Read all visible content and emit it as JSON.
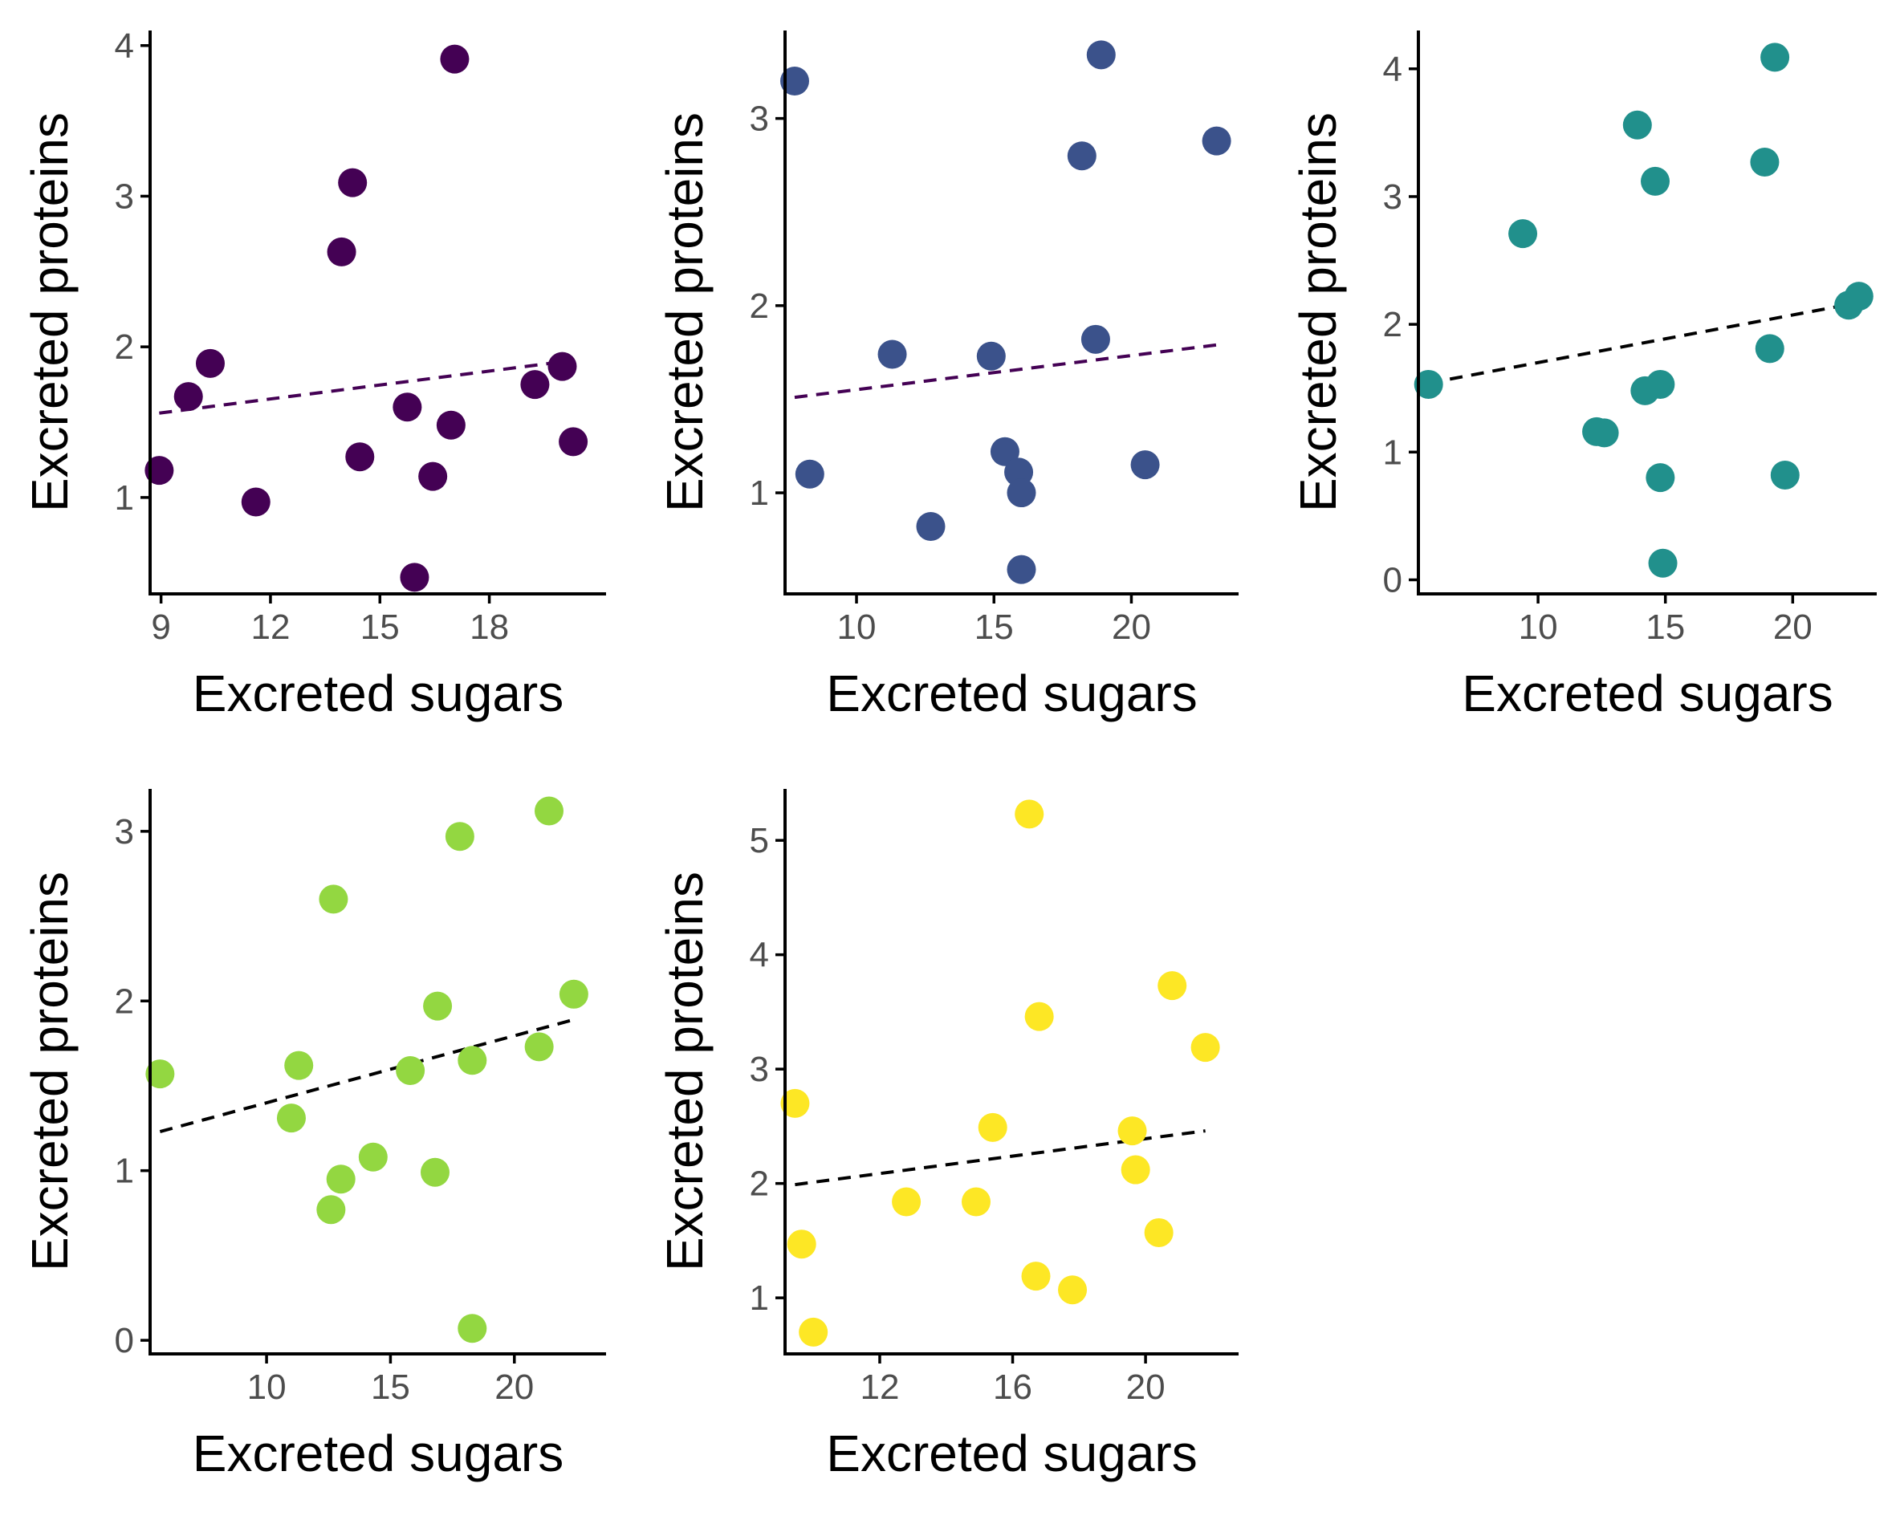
{
  "chart_data": [
    {
      "type": "scatter",
      "xlabel": "Excreted sugars",
      "ylabel": "Excreted proteins",
      "color": "#440154",
      "line_color": "#440154",
      "xlim": [
        8.7,
        21.2
      ],
      "ylim": [
        0.36,
        4.1
      ],
      "xticks": [
        9,
        12,
        15,
        18
      ],
      "yticks": [
        1,
        2,
        3,
        4
      ],
      "points": [
        {
          "x": 8.95,
          "y": 1.18
        },
        {
          "x": 9.75,
          "y": 1.67
        },
        {
          "x": 10.35,
          "y": 1.89
        },
        {
          "x": 11.6,
          "y": 0.97
        },
        {
          "x": 13.95,
          "y": 2.63
        },
        {
          "x": 14.25,
          "y": 3.09
        },
        {
          "x": 14.45,
          "y": 1.27
        },
        {
          "x": 15.75,
          "y": 1.6
        },
        {
          "x": 15.95,
          "y": 0.47
        },
        {
          "x": 16.45,
          "y": 1.14
        },
        {
          "x": 16.95,
          "y": 1.48
        },
        {
          "x": 17.05,
          "y": 3.91
        },
        {
          "x": 19.25,
          "y": 1.75
        },
        {
          "x": 20.0,
          "y": 1.87
        },
        {
          "x": 20.3,
          "y": 1.37
        }
      ],
      "trend": {
        "x": [
          8.95,
          20.3
        ],
        "y": [
          1.56,
          1.91
        ]
      }
    },
    {
      "type": "scatter",
      "xlabel": "Excreted sugars",
      "ylabel": "Excreted proteins",
      "color": "#3b528b",
      "line_color": "#440154",
      "xlim": [
        7.4,
        23.9
      ],
      "ylim": [
        0.46,
        3.47
      ],
      "xticks": [
        10,
        15,
        20
      ],
      "yticks": [
        1,
        2,
        3
      ],
      "points": [
        {
          "x": 7.75,
          "y": 3.2
        },
        {
          "x": 8.3,
          "y": 1.1
        },
        {
          "x": 11.3,
          "y": 1.74
        },
        {
          "x": 12.7,
          "y": 0.82
        },
        {
          "x": 14.9,
          "y": 1.73
        },
        {
          "x": 15.4,
          "y": 1.22
        },
        {
          "x": 15.9,
          "y": 1.11
        },
        {
          "x": 16.0,
          "y": 1.0
        },
        {
          "x": 16.0,
          "y": 0.59
        },
        {
          "x": 18.2,
          "y": 2.8
        },
        {
          "x": 18.7,
          "y": 1.82
        },
        {
          "x": 18.9,
          "y": 3.34
        },
        {
          "x": 20.5,
          "y": 1.15
        },
        {
          "x": 23.1,
          "y": 2.88
        }
      ],
      "trend": {
        "x": [
          7.75,
          23.1
        ],
        "y": [
          1.51,
          1.79
        ]
      }
    },
    {
      "type": "scatter",
      "xlabel": "Excreted sugars",
      "ylabel": "Excreted proteins",
      "color": "#21908c",
      "line_color": "#000000",
      "xlim": [
        5.3,
        23.3
      ],
      "ylim": [
        -0.11,
        4.3
      ],
      "xticks": [
        10,
        15,
        20
      ],
      "yticks": [
        0,
        1,
        2,
        3,
        4
      ],
      "points": [
        {
          "x": 5.7,
          "y": 1.53
        },
        {
          "x": 9.4,
          "y": 2.71
        },
        {
          "x": 12.3,
          "y": 1.16
        },
        {
          "x": 12.6,
          "y": 1.15
        },
        {
          "x": 13.9,
          "y": 3.56
        },
        {
          "x": 14.2,
          "y": 1.48
        },
        {
          "x": 14.6,
          "y": 3.12
        },
        {
          "x": 14.8,
          "y": 1.53
        },
        {
          "x": 14.8,
          "y": 0.8
        },
        {
          "x": 14.9,
          "y": 0.13
        },
        {
          "x": 18.9,
          "y": 3.27
        },
        {
          "x": 19.1,
          "y": 1.81
        },
        {
          "x": 19.3,
          "y": 4.09
        },
        {
          "x": 19.7,
          "y": 0.82
        },
        {
          "x": 22.2,
          "y": 2.15
        },
        {
          "x": 22.6,
          "y": 2.22
        }
      ],
      "trend": {
        "x": [
          5.7,
          22.6
        ],
        "y": [
          1.54,
          2.17
        ]
      }
    },
    {
      "type": "scatter",
      "xlabel": "Excreted sugars",
      "ylabel": "Excreted proteins",
      "color": "#93d741",
      "line_color": "#000000",
      "xlim": [
        5.3,
        23.7
      ],
      "ylim": [
        -0.08,
        3.25
      ],
      "xticks": [
        10,
        15,
        20
      ],
      "yticks": [
        0,
        1,
        2,
        3
      ],
      "points": [
        {
          "x": 5.7,
          "y": 1.57
        },
        {
          "x": 11.0,
          "y": 1.31
        },
        {
          "x": 11.3,
          "y": 1.62
        },
        {
          "x": 12.6,
          "y": 0.77
        },
        {
          "x": 12.7,
          "y": 2.6
        },
        {
          "x": 13.0,
          "y": 0.95
        },
        {
          "x": 14.3,
          "y": 1.08
        },
        {
          "x": 15.8,
          "y": 1.59
        },
        {
          "x": 16.8,
          "y": 0.99
        },
        {
          "x": 16.9,
          "y": 1.97
        },
        {
          "x": 17.8,
          "y": 2.97
        },
        {
          "x": 18.3,
          "y": 1.65
        },
        {
          "x": 18.3,
          "y": 0.07
        },
        {
          "x": 21.0,
          "y": 1.73
        },
        {
          "x": 21.4,
          "y": 3.12
        },
        {
          "x": 22.4,
          "y": 2.04
        }
      ],
      "trend": {
        "x": [
          5.7,
          22.4
        ],
        "y": [
          1.23,
          1.89
        ]
      }
    },
    {
      "type": "scatter",
      "xlabel": "Excreted sugars",
      "ylabel": "Excreted proteins",
      "color": "#fde725",
      "line_color": "#000000",
      "xlim": [
        9.15,
        22.8
      ],
      "ylim": [
        0.51,
        5.45
      ],
      "xticks": [
        12,
        16,
        20
      ],
      "yticks": [
        1,
        2,
        3,
        4,
        5
      ],
      "points": [
        {
          "x": 9.45,
          "y": 2.7
        },
        {
          "x": 9.65,
          "y": 1.47
        },
        {
          "x": 10.0,
          "y": 0.7
        },
        {
          "x": 12.8,
          "y": 1.84
        },
        {
          "x": 14.9,
          "y": 1.84
        },
        {
          "x": 15.4,
          "y": 2.49
        },
        {
          "x": 16.5,
          "y": 5.23
        },
        {
          "x": 16.7,
          "y": 1.19
        },
        {
          "x": 16.8,
          "y": 3.46
        },
        {
          "x": 17.8,
          "y": 1.07
        },
        {
          "x": 19.6,
          "y": 2.46
        },
        {
          "x": 19.7,
          "y": 2.12
        },
        {
          "x": 20.4,
          "y": 1.57
        },
        {
          "x": 20.8,
          "y": 3.73
        },
        {
          "x": 21.8,
          "y": 3.19
        }
      ],
      "trend": {
        "x": [
          9.45,
          21.8
        ],
        "y": [
          1.99,
          2.46
        ]
      }
    }
  ]
}
